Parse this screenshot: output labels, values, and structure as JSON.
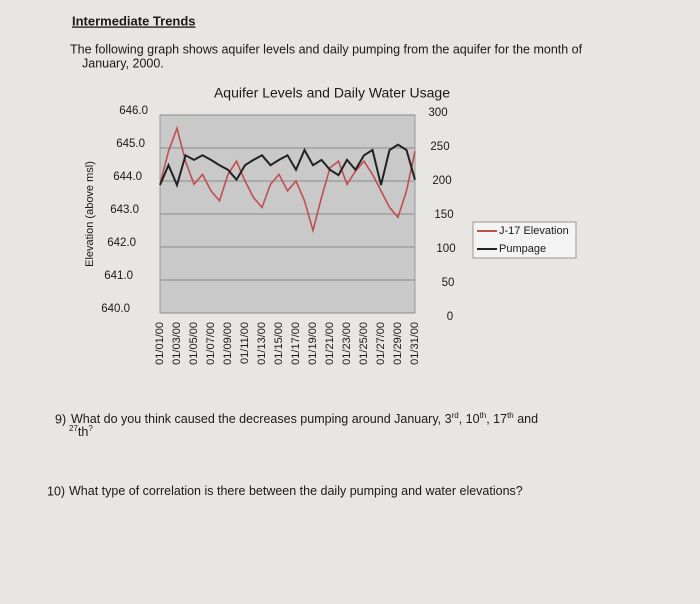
{
  "header": {
    "title": "Intermediate Trends"
  },
  "intro": [
    "The following graph shows aquifer levels and daily pumping from the aquifer for the month of",
    "January, 2000."
  ],
  "chart_data": {
    "type": "line",
    "title": "Aquifer Levels and Daily Water Usage",
    "y_label": "Elevation (above msl)",
    "categories": [
      "01/01/00",
      null,
      "01/03/00",
      null,
      "01/05/00",
      null,
      "01/07/00",
      null,
      "01/09/00",
      null,
      "01/11/00",
      null,
      "01/13/00",
      null,
      "01/15/00",
      null,
      "01/17/00",
      null,
      "01/19/00",
      null,
      "01/21/00",
      null,
      "01/23/00",
      null,
      "01/25/00",
      null,
      "01/27/00",
      null,
      "01/29/00",
      null,
      "01/31/00"
    ],
    "series": [
      {
        "name": "J-17 Elevation",
        "color": "#c0504d",
        "values": [
          643.9,
          644.9,
          645.6,
          644.6,
          643.9,
          644.2,
          643.7,
          643.4,
          644.2,
          644.6,
          644.0,
          643.5,
          643.2,
          643.9,
          644.2,
          643.7,
          644.0,
          643.4,
          642.5,
          643.5,
          644.4,
          644.6,
          643.9,
          644.3,
          644.6,
          644.2,
          643.7,
          643.2,
          642.9,
          643.7,
          644.9
        ]
      },
      {
        "name": "Pumpage",
        "color": "#222222",
        "axis": "y2",
        "values": [
          194,
          224,
          194,
          239,
          232,
          239,
          232,
          224,
          217,
          202,
          224,
          232,
          239,
          224,
          232,
          239,
          217,
          247,
          224,
          232,
          217,
          209,
          232,
          217,
          239,
          247,
          194,
          247,
          255,
          247,
          202
        ]
      }
    ],
    "ylim": [
      640,
      646
    ],
    "yticks": [
      {
        "value": 640,
        "label": "640.0"
      },
      {
        "value": 641,
        "label": "641.0"
      },
      {
        "value": 642,
        "label": "642.0"
      },
      {
        "value": 643,
        "label": "643.0"
      },
      {
        "value": 644,
        "label": "644.0"
      },
      {
        "value": 645,
        "label": "645.0"
      },
      {
        "value": 646,
        "label": "646.0"
      }
    ],
    "y2lim": [
      0,
      300
    ],
    "y2ticks": [
      0,
      50,
      100,
      150,
      200,
      250,
      300
    ],
    "grid": true,
    "legend": "right"
  },
  "questions": [
    {
      "number": "9)",
      "parts": [
        "What do you think caused the decreases pumping around January, 3",
        "rd",
        ", 10",
        "th",
        ", 17",
        "th",
        " and",
        "27",
        "th",
        "?"
      ]
    },
    {
      "number": "10)",
      "parts": [
        "What type of correlation is there between the daily pumping and water elevations?"
      ]
    }
  ]
}
